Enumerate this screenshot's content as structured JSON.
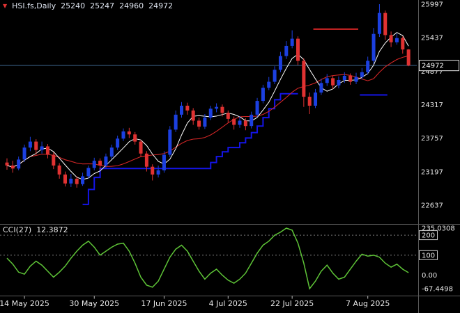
{
  "header": {
    "marker": "▼",
    "symbol": "HSI.fs,Daily",
    "open": "25240",
    "high": "25247",
    "low": "24960",
    "close": "24972"
  },
  "indicator": {
    "name": "CCI(27)",
    "value": "12.3872",
    "axis_labels": [
      {
        "text": "235.0308",
        "value": 235.0308,
        "boxed": false
      },
      {
        "text": "200",
        "value": 200,
        "boxed": true
      },
      {
        "text": "100",
        "value": 100,
        "boxed": true
      },
      {
        "text": "0.00",
        "value": 0,
        "boxed": false
      },
      {
        "text": "-67.4498",
        "value": -67.4498,
        "boxed": false
      }
    ]
  },
  "price_axis": {
    "labels": [
      {
        "text": "25997",
        "value": 25997
      },
      {
        "text": "25437",
        "value": 25437
      },
      {
        "text": "24877",
        "value": 24877
      },
      {
        "text": "24317",
        "value": 24317
      },
      {
        "text": "23757",
        "value": 23757
      },
      {
        "text": "23197",
        "value": 23197
      },
      {
        "text": "22637",
        "value": 22637
      }
    ],
    "current": {
      "text": "24972",
      "value": 24972
    }
  },
  "time_axis": {
    "labels": [
      {
        "text": "14 May 2025",
        "bar": 3
      },
      {
        "text": "30 May 2025",
        "bar": 15
      },
      {
        "text": "17 Jun 2025",
        "bar": 27
      },
      {
        "text": "4 Jul 2025",
        "bar": 38
      },
      {
        "text": "22 Jul 2025",
        "bar": 49
      },
      {
        "text": "7 Aug 2025",
        "bar": 62
      }
    ]
  },
  "colors": {
    "background": "#000000",
    "up": "#1c40e0",
    "down": "#e03232",
    "ma_fast": "#ffffff",
    "ma_slow": "#d22626",
    "step_line": "#1414e8",
    "cci_line": "#5ec437",
    "price_line": "#3a5f85",
    "axis_text": "#e8e8e8",
    "separator": "#5a5a5a",
    "level_dash": "#7a7a7a"
  },
  "chart_data": {
    "type": "candlestick",
    "title": "HSI.fs,Daily",
    "xlabel": "date",
    "ylabel": "price",
    "price_range": [
      22637,
      25997
    ],
    "current_price": 24972,
    "candles": [
      [
        23350,
        23420,
        23230,
        23300
      ],
      [
        23300,
        23380,
        23180,
        23250
      ],
      [
        23250,
        23450,
        23220,
        23400
      ],
      [
        23400,
        23650,
        23360,
        23600
      ],
      [
        23600,
        23780,
        23540,
        23700
      ],
      [
        23700,
        23740,
        23480,
        23560
      ],
      [
        23560,
        23700,
        23500,
        23620
      ],
      [
        23620,
        23660,
        23420,
        23480
      ],
      [
        23480,
        23520,
        23240,
        23300
      ],
      [
        23300,
        23340,
        23080,
        23150
      ],
      [
        23150,
        23200,
        22950,
        23000
      ],
      [
        23000,
        23160,
        22940,
        23080
      ],
      [
        23080,
        23120,
        22930,
        22990
      ],
      [
        22990,
        23180,
        22960,
        23120
      ],
      [
        23120,
        23300,
        23080,
        23260
      ],
      [
        23260,
        23430,
        23220,
        23380
      ],
      [
        23380,
        23420,
        23240,
        23300
      ],
      [
        23300,
        23500,
        23260,
        23450
      ],
      [
        23450,
        23650,
        23410,
        23600
      ],
      [
        23600,
        23800,
        23560,
        23750
      ],
      [
        23750,
        23920,
        23710,
        23870
      ],
      [
        23870,
        23930,
        23760,
        23820
      ],
      [
        23820,
        23860,
        23650,
        23700
      ],
      [
        23700,
        23730,
        23440,
        23500
      ],
      [
        23500,
        23540,
        23200,
        23280
      ],
      [
        23280,
        23320,
        23050,
        23150
      ],
      [
        23150,
        23300,
        23100,
        23220
      ],
      [
        23220,
        23540,
        23180,
        23480
      ],
      [
        23480,
        23960,
        23440,
        23900
      ],
      [
        23900,
        24220,
        23860,
        24150
      ],
      [
        24150,
        24360,
        24100,
        24300
      ],
      [
        24300,
        24350,
        24150,
        24220
      ],
      [
        24220,
        24260,
        23980,
        24050
      ],
      [
        24050,
        24100,
        23900,
        23950
      ],
      [
        23950,
        24160,
        23910,
        24100
      ],
      [
        24100,
        24300,
        24060,
        24250
      ],
      [
        24250,
        24340,
        24190,
        24280
      ],
      [
        24280,
        24320,
        24120,
        24180
      ],
      [
        24180,
        24220,
        24020,
        24080
      ],
      [
        24080,
        24120,
        23900,
        23980
      ],
      [
        23980,
        24120,
        23930,
        24050
      ],
      [
        24050,
        24090,
        23890,
        23960
      ],
      [
        23960,
        24200,
        23920,
        24150
      ],
      [
        24150,
        24430,
        24110,
        24380
      ],
      [
        24380,
        24650,
        24340,
        24600
      ],
      [
        24600,
        24780,
        24560,
        24700
      ],
      [
        24700,
        24960,
        24660,
        24900
      ],
      [
        24900,
        25200,
        24860,
        25130
      ],
      [
        25130,
        25380,
        25080,
        25300
      ],
      [
        25300,
        25560,
        25260,
        25420
      ],
      [
        25420,
        25460,
        24980,
        25050
      ],
      [
        25050,
        25090,
        24280,
        24450
      ],
      [
        24450,
        24520,
        24160,
        24300
      ],
      [
        24300,
        24580,
        24260,
        24520
      ],
      [
        24520,
        24750,
        24480,
        24680
      ],
      [
        24680,
        24830,
        24630,
        24760
      ],
      [
        24760,
        24800,
        24580,
        24640
      ],
      [
        24640,
        24790,
        24590,
        24730
      ],
      [
        24730,
        24860,
        24680,
        24800
      ],
      [
        24800,
        24840,
        24650,
        24700
      ],
      [
        24700,
        24850,
        24660,
        24780
      ],
      [
        24780,
        24930,
        24740,
        24860
      ],
      [
        24860,
        25120,
        24820,
        25050
      ],
      [
        25050,
        25600,
        25000,
        25500
      ],
      [
        25500,
        25997,
        25450,
        25850
      ],
      [
        25850,
        25890,
        25400,
        25480
      ],
      [
        25480,
        25540,
        25280,
        25360
      ],
      [
        25360,
        25500,
        25320,
        25430
      ],
      [
        25430,
        25460,
        25170,
        25240
      ],
      [
        25240,
        25247,
        24960,
        24972
      ]
    ],
    "overlays": {
      "ma_fast_period": 5,
      "ma_slow_period": 13,
      "step_line": [
        [
          13,
          22650
        ],
        [
          14,
          22900
        ],
        [
          15,
          23100
        ],
        [
          16,
          23250
        ],
        [
          34,
          23250
        ],
        [
          35,
          23350
        ],
        [
          36,
          23450
        ],
        [
          37,
          23530
        ],
        [
          38,
          23600
        ],
        [
          40,
          23680
        ],
        [
          41,
          23760
        ],
        [
          42,
          23850
        ],
        [
          43,
          23960
        ],
        [
          44,
          24100
        ],
        [
          45,
          24250
        ],
        [
          46,
          24400
        ],
        [
          47,
          24500
        ],
        [
          50,
          24500
        ]
      ],
      "levels": [
        {
          "from": 53,
          "to": 60,
          "price": 25580,
          "color": "down"
        },
        {
          "from": 61,
          "to": 65,
          "price": 24480,
          "color": "up"
        }
      ]
    },
    "cci": {
      "period": 27,
      "current": 12.3872,
      "range": [
        -67.4498,
        235.0308
      ],
      "levels": [
        100,
        200
      ],
      "values": [
        85,
        55,
        15,
        5,
        45,
        70,
        50,
        20,
        -10,
        15,
        45,
        85,
        120,
        150,
        170,
        140,
        100,
        120,
        140,
        155,
        160,
        120,
        60,
        -10,
        -50,
        -60,
        -30,
        30,
        90,
        130,
        150,
        120,
        70,
        20,
        -20,
        10,
        30,
        0,
        -25,
        -40,
        -20,
        10,
        60,
        110,
        150,
        170,
        200,
        215,
        235.0308,
        225,
        160,
        60,
        -67.4498,
        -30,
        20,
        50,
        10,
        -20,
        -10,
        30,
        70,
        105,
        95,
        100,
        90,
        60,
        40,
        55,
        30,
        12.3872
      ]
    }
  }
}
